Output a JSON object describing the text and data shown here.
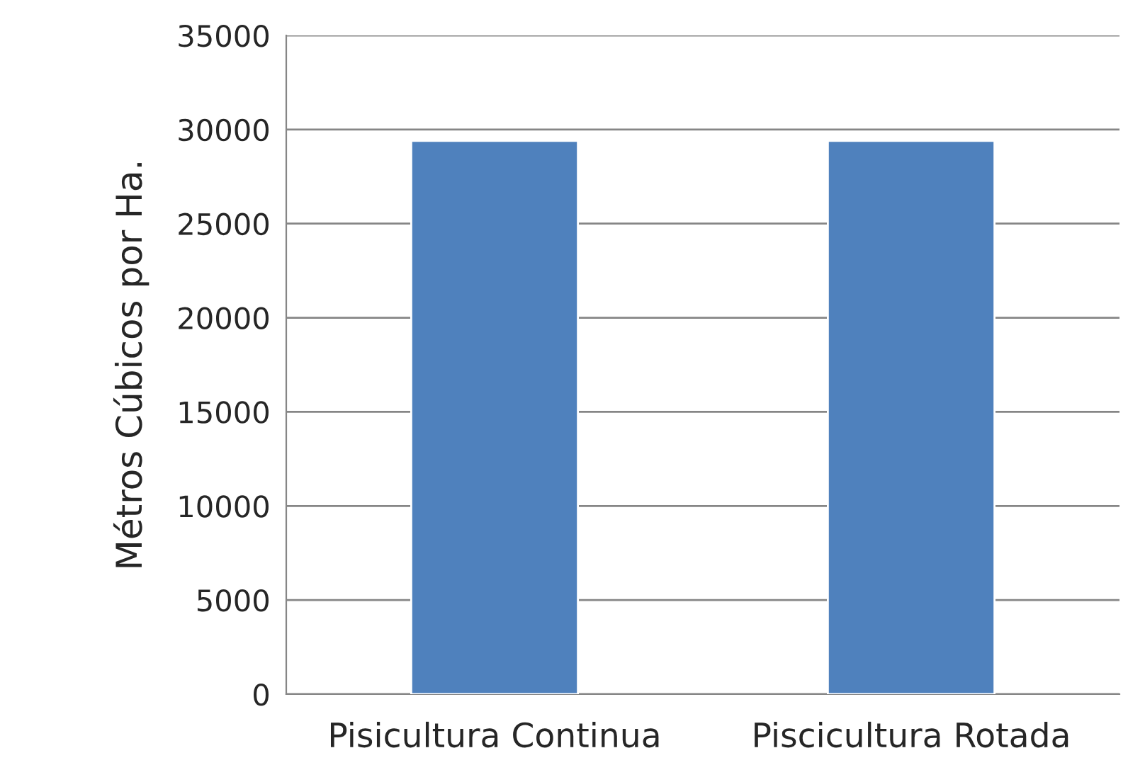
{
  "chart_data": {
    "type": "bar",
    "ylabel": "Métros Cúbicos por Ha.",
    "categories": [
      "Pisicultura Continua",
      "Piscicultura Rotada"
    ],
    "values": [
      29400,
      29400
    ],
    "color": "#4f81bd",
    "ylim": [
      0,
      35000
    ],
    "yticks": [
      0,
      5000,
      10000,
      15000,
      20000,
      25000,
      30000,
      35000
    ],
    "grid": "y"
  }
}
